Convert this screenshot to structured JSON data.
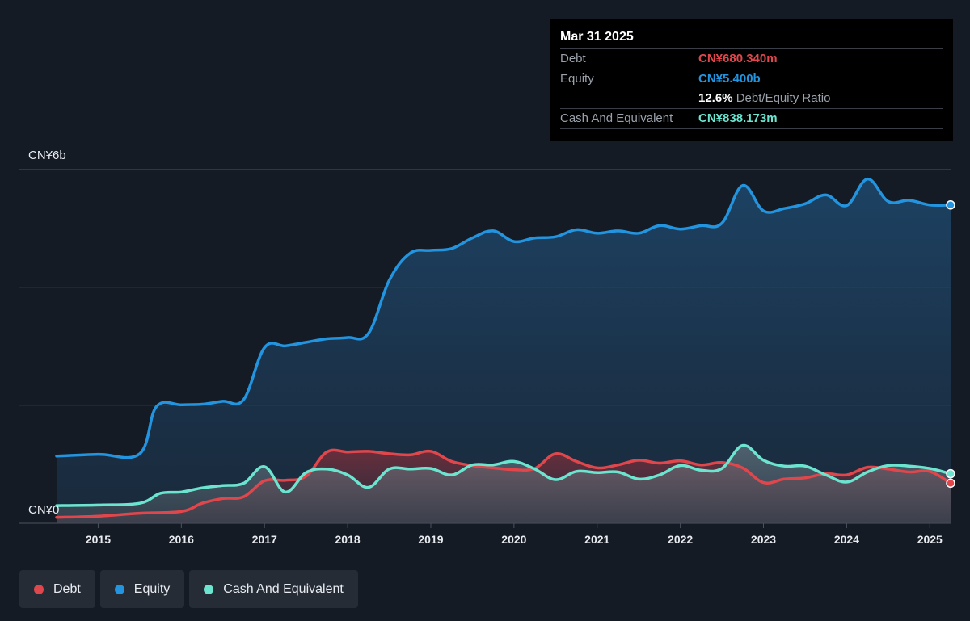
{
  "tooltip": {
    "date": "Mar 31 2025",
    "debt_label": "Debt",
    "debt_value": "CN¥680.340m",
    "equity_label": "Equity",
    "equity_value": "CN¥5.400b",
    "ratio_value": "12.6%",
    "ratio_label": "Debt/Equity Ratio",
    "cash_label": "Cash And Equivalent",
    "cash_value": "CN¥838.173m"
  },
  "legend": [
    {
      "label": "Debt",
      "color": "#e0474c"
    },
    {
      "label": "Equity",
      "color": "#2394df"
    },
    {
      "label": "Cash And Equivalent",
      "color": "#6ce5d0"
    }
  ],
  "chart_data": {
    "type": "area",
    "y_axis_labels": [
      "CN¥6b",
      "CN¥0"
    ],
    "ylim": [
      0,
      6.0
    ],
    "xlim": [
      2014.5,
      2025.25
    ],
    "x_ticks": [
      "2015",
      "2016",
      "2017",
      "2018",
      "2019",
      "2020",
      "2021",
      "2022",
      "2023",
      "2024",
      "2025"
    ],
    "grid": true,
    "units": "CN¥ billions",
    "series": [
      {
        "name": "Equity",
        "color": "#2394df",
        "points": [
          [
            2014.5,
            1.14
          ],
          [
            2015.0,
            1.17
          ],
          [
            2015.5,
            1.18
          ],
          [
            2015.7,
            1.98
          ],
          [
            2016.0,
            2.01
          ],
          [
            2016.25,
            2.02
          ],
          [
            2016.5,
            2.07
          ],
          [
            2016.75,
            2.1
          ],
          [
            2017.0,
            2.98
          ],
          [
            2017.25,
            3.01
          ],
          [
            2017.5,
            3.07
          ],
          [
            2017.75,
            3.13
          ],
          [
            2018.0,
            3.15
          ],
          [
            2018.25,
            3.22
          ],
          [
            2018.5,
            4.12
          ],
          [
            2018.75,
            4.58
          ],
          [
            2019.0,
            4.63
          ],
          [
            2019.25,
            4.66
          ],
          [
            2019.5,
            4.84
          ],
          [
            2019.75,
            4.96
          ],
          [
            2020.0,
            4.78
          ],
          [
            2020.25,
            4.84
          ],
          [
            2020.5,
            4.86
          ],
          [
            2020.75,
            4.98
          ],
          [
            2021.0,
            4.92
          ],
          [
            2021.25,
            4.96
          ],
          [
            2021.5,
            4.92
          ],
          [
            2021.75,
            5.05
          ],
          [
            2022.0,
            4.99
          ],
          [
            2022.25,
            5.05
          ],
          [
            2022.5,
            5.09
          ],
          [
            2022.75,
            5.73
          ],
          [
            2023.0,
            5.3
          ],
          [
            2023.25,
            5.34
          ],
          [
            2023.5,
            5.42
          ],
          [
            2023.75,
            5.57
          ],
          [
            2024.0,
            5.39
          ],
          [
            2024.25,
            5.84
          ],
          [
            2024.5,
            5.46
          ],
          [
            2024.75,
            5.48
          ],
          [
            2025.0,
            5.4
          ],
          [
            2025.25,
            5.4
          ]
        ]
      },
      {
        "name": "Debt",
        "color": "#e0474c",
        "points": [
          [
            2014.5,
            0.1
          ],
          [
            2015.0,
            0.12
          ],
          [
            2015.5,
            0.17
          ],
          [
            2016.0,
            0.2
          ],
          [
            2016.25,
            0.34
          ],
          [
            2016.5,
            0.42
          ],
          [
            2016.75,
            0.45
          ],
          [
            2017.0,
            0.72
          ],
          [
            2017.25,
            0.73
          ],
          [
            2017.5,
            0.8
          ],
          [
            2017.75,
            1.21
          ],
          [
            2018.0,
            1.21
          ],
          [
            2018.25,
            1.22
          ],
          [
            2018.5,
            1.18
          ],
          [
            2018.75,
            1.16
          ],
          [
            2019.0,
            1.22
          ],
          [
            2019.25,
            1.05
          ],
          [
            2019.5,
            0.98
          ],
          [
            2019.75,
            0.94
          ],
          [
            2020.0,
            0.91
          ],
          [
            2020.25,
            0.93
          ],
          [
            2020.5,
            1.18
          ],
          [
            2020.75,
            1.05
          ],
          [
            2021.0,
            0.94
          ],
          [
            2021.25,
            0.99
          ],
          [
            2021.5,
            1.07
          ],
          [
            2021.75,
            1.02
          ],
          [
            2022.0,
            1.06
          ],
          [
            2022.25,
            0.99
          ],
          [
            2022.5,
            1.03
          ],
          [
            2022.75,
            0.94
          ],
          [
            2023.0,
            0.69
          ],
          [
            2023.25,
            0.75
          ],
          [
            2023.5,
            0.77
          ],
          [
            2023.75,
            0.84
          ],
          [
            2024.0,
            0.82
          ],
          [
            2024.25,
            0.95
          ],
          [
            2024.5,
            0.92
          ],
          [
            2024.75,
            0.87
          ],
          [
            2025.0,
            0.88
          ],
          [
            2025.25,
            0.68
          ]
        ]
      },
      {
        "name": "Cash And Equivalent",
        "color": "#6ce5d0",
        "points": [
          [
            2014.5,
            0.3
          ],
          [
            2015.0,
            0.31
          ],
          [
            2015.5,
            0.34
          ],
          [
            2015.75,
            0.51
          ],
          [
            2016.0,
            0.53
          ],
          [
            2016.25,
            0.6
          ],
          [
            2016.5,
            0.64
          ],
          [
            2016.75,
            0.68
          ],
          [
            2017.0,
            0.96
          ],
          [
            2017.25,
            0.53
          ],
          [
            2017.5,
            0.86
          ],
          [
            2017.75,
            0.92
          ],
          [
            2018.0,
            0.82
          ],
          [
            2018.25,
            0.61
          ],
          [
            2018.5,
            0.92
          ],
          [
            2018.75,
            0.92
          ],
          [
            2019.0,
            0.93
          ],
          [
            2019.25,
            0.82
          ],
          [
            2019.5,
            0.99
          ],
          [
            2019.75,
            0.99
          ],
          [
            2020.0,
            1.05
          ],
          [
            2020.25,
            0.92
          ],
          [
            2020.5,
            0.74
          ],
          [
            2020.75,
            0.88
          ],
          [
            2021.0,
            0.86
          ],
          [
            2021.25,
            0.87
          ],
          [
            2021.5,
            0.75
          ],
          [
            2021.75,
            0.82
          ],
          [
            2022.0,
            0.98
          ],
          [
            2022.25,
            0.9
          ],
          [
            2022.5,
            0.93
          ],
          [
            2022.75,
            1.32
          ],
          [
            2023.0,
            1.07
          ],
          [
            2023.25,
            0.97
          ],
          [
            2023.5,
            0.97
          ],
          [
            2023.75,
            0.82
          ],
          [
            2024.0,
            0.7
          ],
          [
            2024.25,
            0.87
          ],
          [
            2024.5,
            0.98
          ],
          [
            2024.75,
            0.97
          ],
          [
            2025.0,
            0.93
          ],
          [
            2025.25,
            0.84
          ]
        ]
      }
    ]
  }
}
